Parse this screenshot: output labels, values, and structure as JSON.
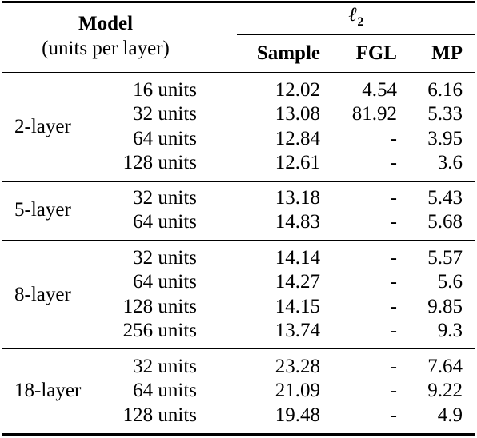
{
  "header": {
    "model_title": "Model",
    "model_subtitle": "(units per layer)",
    "metric": "ℓ",
    "metric_sub": "2",
    "columns": [
      "Sample",
      "FGL",
      "MP"
    ]
  },
  "groups": [
    {
      "label": "2-layer",
      "rows": [
        {
          "units": "16 units",
          "sample": "12.02",
          "fgl": "4.54",
          "mp": "6.16"
        },
        {
          "units": "32 units",
          "sample": "13.08",
          "fgl": "81.92",
          "mp": "5.33"
        },
        {
          "units": "64 units",
          "sample": "12.84",
          "fgl": "-",
          "mp": "3.95"
        },
        {
          "units": "128 units",
          "sample": "12.61",
          "fgl": "-",
          "mp": "3.6"
        }
      ]
    },
    {
      "label": "5-layer",
      "rows": [
        {
          "units": "32 units",
          "sample": "13.18",
          "fgl": "-",
          "mp": "5.43"
        },
        {
          "units": "64 units",
          "sample": "14.83",
          "fgl": "-",
          "mp": "5.68"
        }
      ]
    },
    {
      "label": "8-layer",
      "rows": [
        {
          "units": "32 units",
          "sample": "14.14",
          "fgl": "-",
          "mp": "5.57"
        },
        {
          "units": "64 units",
          "sample": "14.27",
          "fgl": "-",
          "mp": "5.6"
        },
        {
          "units": "128 units",
          "sample": "14.15",
          "fgl": "-",
          "mp": "9.85"
        },
        {
          "units": "256 units",
          "sample": "13.74",
          "fgl": "-",
          "mp": "9.3"
        }
      ]
    },
    {
      "label": "18-layer",
      "rows": [
        {
          "units": "32 units",
          "sample": "23.28",
          "fgl": "-",
          "mp": "7.64"
        },
        {
          "units": "64 units",
          "sample": "21.09",
          "fgl": "-",
          "mp": "9.22"
        },
        {
          "units": "128 units",
          "sample": "19.48",
          "fgl": "-",
          "mp": "4.9"
        }
      ]
    }
  ]
}
